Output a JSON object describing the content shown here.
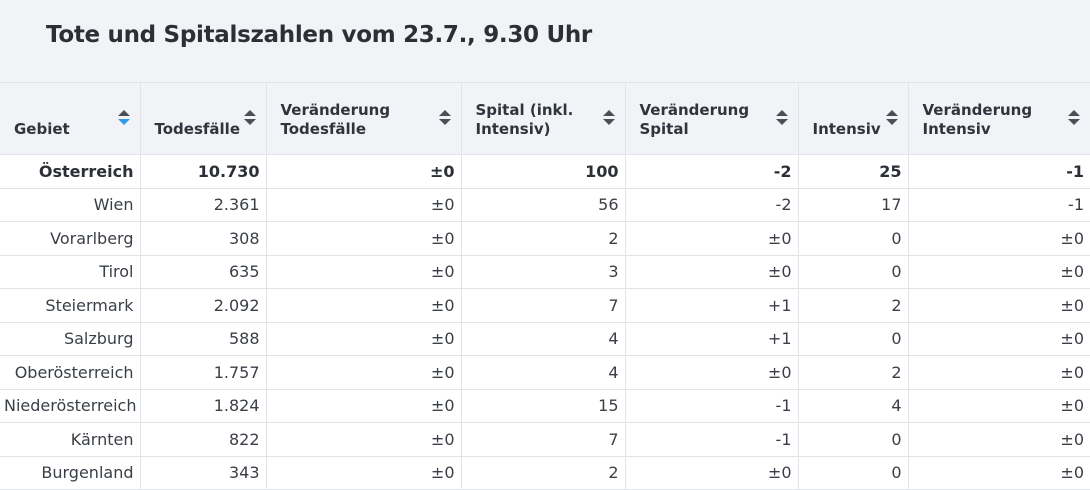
{
  "title": "Tote und Spitalszahlen vom 23.7., 9.30 Uhr",
  "columns": [
    {
      "label_1": "Gebiet",
      "label_2": "",
      "sort": "active"
    },
    {
      "label_1": "Todesfälle",
      "label_2": "",
      "sort": "inactive"
    },
    {
      "label_1": "Veränderung",
      "label_2": "Todesfälle",
      "sort": "inactive"
    },
    {
      "label_1": "Spital (inkl.",
      "label_2": "Intensiv)",
      "sort": "inactive"
    },
    {
      "label_1": "Veränderung",
      "label_2": "Spital",
      "sort": "inactive"
    },
    {
      "label_1": "Intensiv",
      "label_2": "",
      "sort": "inactive"
    },
    {
      "label_1": "Veränderung",
      "label_2": "Intensiv",
      "sort": "inactive"
    }
  ],
  "rows": [
    [
      "Österreich",
      "10.730",
      "±0",
      "100",
      "-2",
      "25",
      "-1"
    ],
    [
      "Wien",
      "2.361",
      "±0",
      "56",
      "-2",
      "17",
      "-1"
    ],
    [
      "Vorarlberg",
      "308",
      "±0",
      "2",
      "±0",
      "0",
      "±0"
    ],
    [
      "Tirol",
      "635",
      "±0",
      "3",
      "±0",
      "0",
      "±0"
    ],
    [
      "Steiermark",
      "2.092",
      "±0",
      "7",
      "+1",
      "2",
      "±0"
    ],
    [
      "Salzburg",
      "588",
      "±0",
      "4",
      "+1",
      "0",
      "±0"
    ],
    [
      "Oberösterreich",
      "1.757",
      "±0",
      "4",
      "±0",
      "2",
      "±0"
    ],
    [
      "Niederösterreich",
      "1.824",
      "±0",
      "15",
      "-1",
      "4",
      "±0"
    ],
    [
      "Kärnten",
      "822",
      "±0",
      "7",
      "-1",
      "0",
      "±0"
    ],
    [
      "Burgenland",
      "343",
      "±0",
      "2",
      "±0",
      "0",
      "±0"
    ]
  ],
  "colors": {
    "header_bg": "#f2f3f7",
    "border": "#e2e4ea",
    "sort_active": "#2f9be8",
    "sort_inactive": "#4b5058"
  }
}
